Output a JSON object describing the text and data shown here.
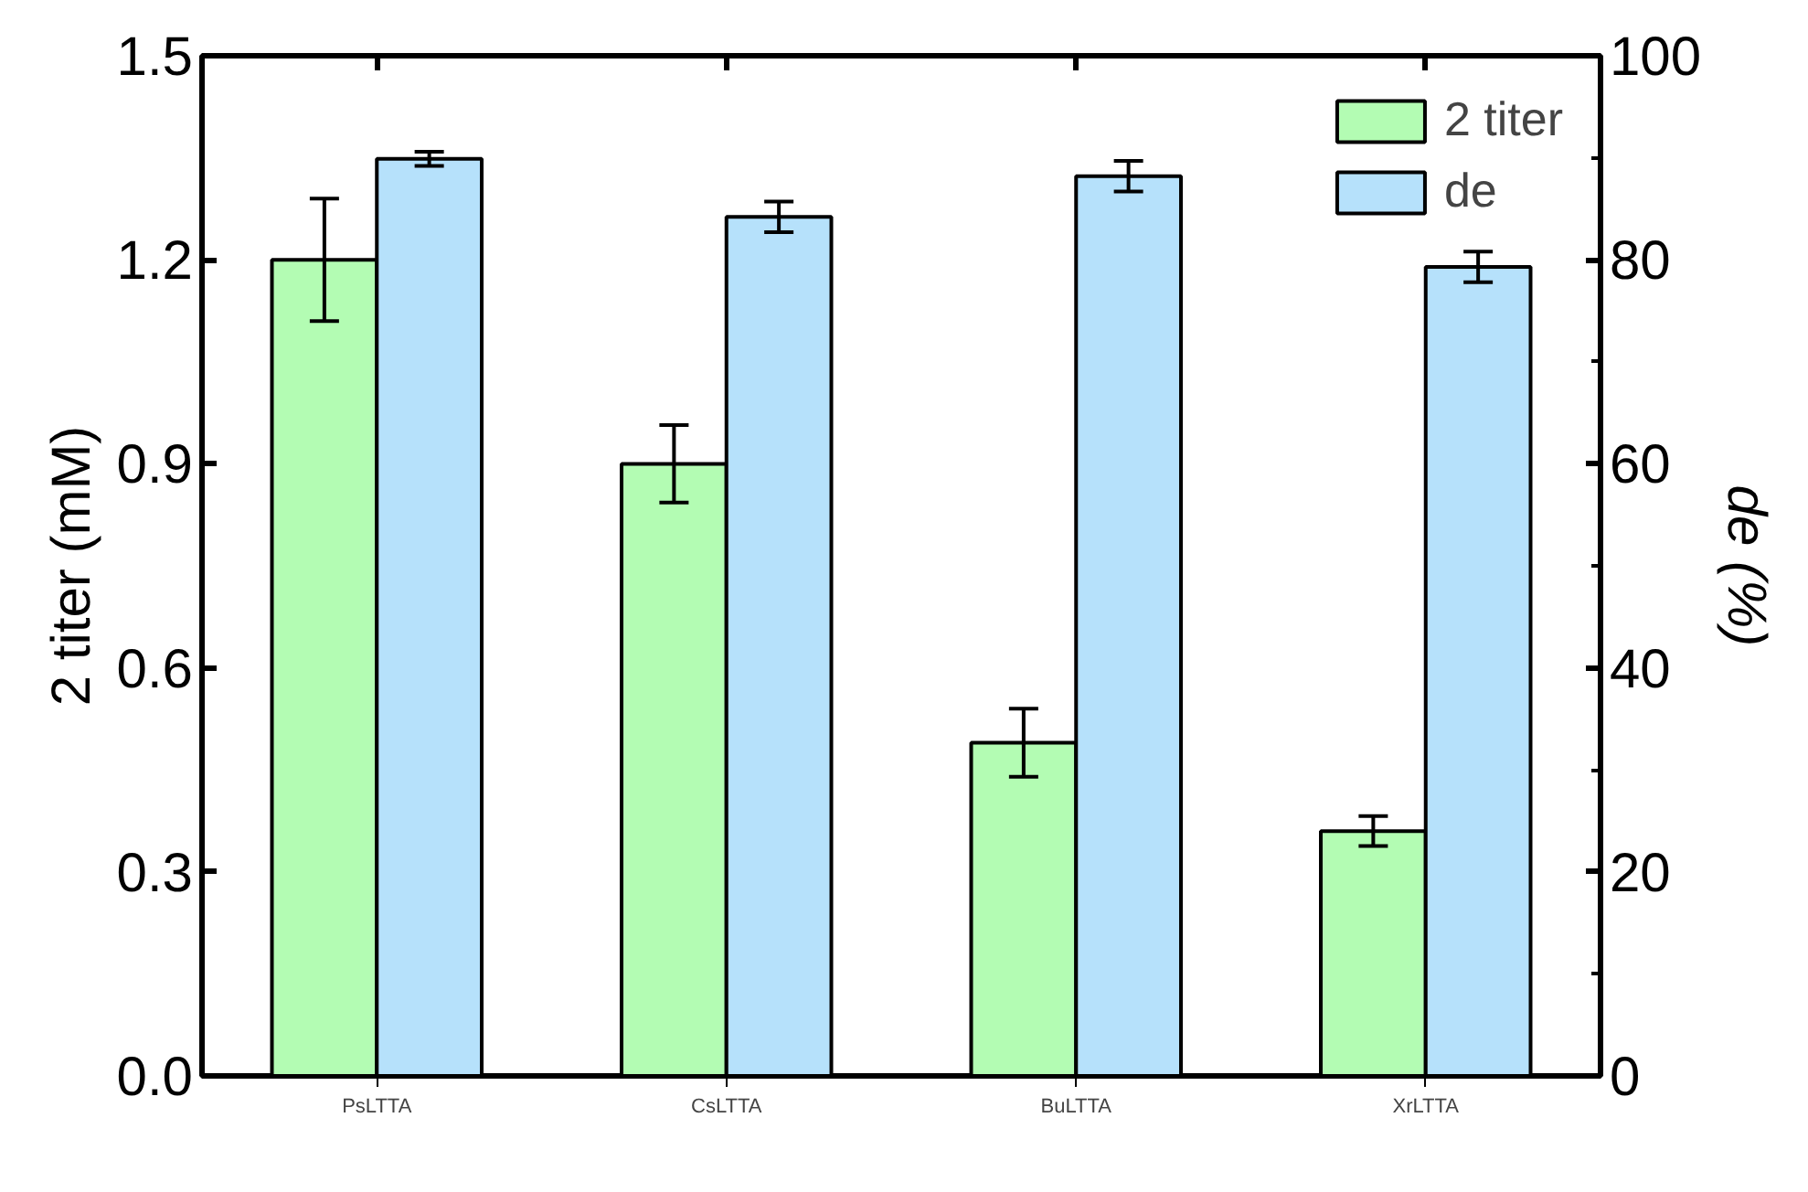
{
  "chart_data": {
    "type": "bar",
    "ylabel": "2 titer (mM)",
    "y2label": "de (%)",
    "categories": [
      "PsLTTA",
      "CsLTTA",
      "BuLTTA",
      "XrLTTA"
    ],
    "series": [
      {
        "name": "2 titer",
        "color": "#b3fcb3",
        "values": [
          1.2,
          0.9,
          0.49,
          0.36
        ],
        "errors": [
          0.09,
          0.057,
          0.05,
          0.022
        ]
      },
      {
        "name": "de",
        "color": "#b6e1fb",
        "axis": "y2",
        "values": [
          89.9,
          84.2,
          88.2,
          79.3
        ],
        "errors": [
          0.7,
          1.5,
          1.5,
          1.5
        ]
      }
    ],
    "ylim": [
      0,
      1.5
    ],
    "yticks": [
      {
        "value": 0,
        "label": "0.0"
      },
      0.3,
      0.6,
      0.9,
      1.2,
      1.5
    ],
    "y2lim": [
      0,
      100
    ],
    "y2ticks": [
      0,
      20,
      40,
      60,
      80,
      100
    ],
    "grid": false,
    "legend": "top right"
  }
}
